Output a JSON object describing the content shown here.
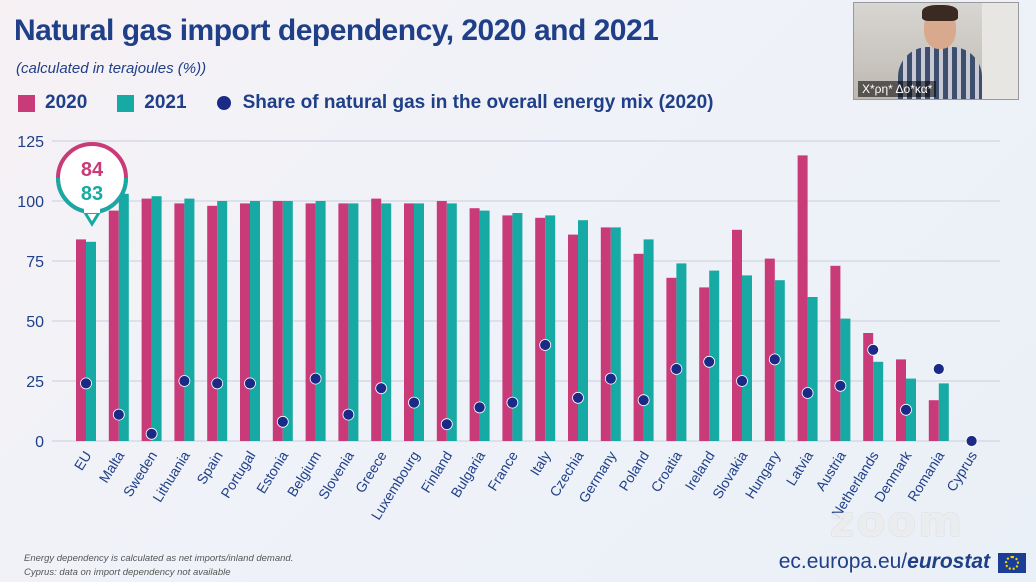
{
  "header": {
    "title": "Natural gas import dependency, 2020 and 2021",
    "subtitle": "(calculated in terajoules (%))"
  },
  "legend": {
    "series_2020": "2020",
    "series_2021": "2021",
    "dots": "Share of natural gas in the overall energy mix (2020)"
  },
  "colors": {
    "series_2020": "#c93a78",
    "series_2021": "#17a9a3",
    "dots": "#1a2a86",
    "axis_text": "#1f3f88",
    "grid": "#c9cfdd"
  },
  "callout": {
    "value_2020": "84",
    "value_2021": "83"
  },
  "chart_data": {
    "type": "bar",
    "categories": [
      "EU",
      "Malta",
      "Sweden",
      "Lithuania",
      "Spain",
      "Portugal",
      "Estonia",
      "Belgium",
      "Slovenia",
      "Greece",
      "Luxembourg",
      "Finland",
      "Bulgaria",
      "France",
      "Italy",
      "Czechia",
      "Germany",
      "Poland",
      "Croatia",
      "Ireland",
      "Slovakia",
      "Hungary",
      "Latvia",
      "Austria",
      "Netherlands",
      "Denmark",
      "Romania",
      "Cyprus"
    ],
    "series": [
      {
        "name": "2020",
        "values": [
          84,
          96,
          101,
          99,
          98,
          99,
          100,
          99,
          99,
          101,
          99,
          100,
          97,
          94,
          93,
          86,
          89,
          78,
          68,
          64,
          88,
          76,
          119,
          73,
          45,
          34,
          17,
          null
        ]
      },
      {
        "name": "2021",
        "values": [
          83,
          103,
          102,
          101,
          100,
          100,
          100,
          100,
          99,
          99,
          99,
          99,
          96,
          95,
          94,
          92,
          89,
          84,
          74,
          71,
          69,
          67,
          60,
          51,
          33,
          26,
          24,
          null
        ]
      }
    ],
    "dots": {
      "name": "Share of natural gas in the overall energy mix (2020)",
      "values": [
        24,
        11,
        3,
        25,
        24,
        24,
        8,
        26,
        11,
        22,
        16,
        7,
        14,
        16,
        40,
        18,
        26,
        17,
        30,
        33,
        25,
        34,
        20,
        23,
        38,
        13,
        30,
        0
      ]
    },
    "y_ticks": [
      0,
      25,
      50,
      75,
      100,
      125
    ],
    "ylim": [
      0,
      125
    ],
    "grid": true,
    "legend_position": "top-left"
  },
  "footnotes": {
    "line1": "Energy dependency is calculated as net imports/inland demand.",
    "line2": "Cyprus: data on import dependency not available"
  },
  "source": {
    "prefix": "ec.europa.eu/",
    "brand": "eurostat"
  },
  "webcam": {
    "name": "Χ*ρη* Δο*κα*"
  },
  "overlay": {
    "zoom": "zoom"
  }
}
